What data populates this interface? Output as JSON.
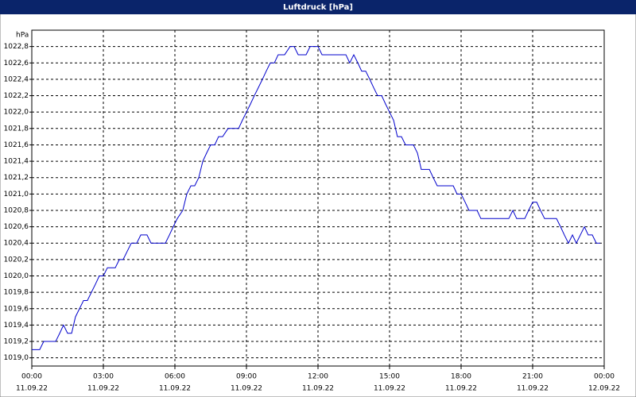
{
  "chart_data": {
    "type": "line",
    "title": "Luftdruck [hPa]",
    "y_label": "hPa",
    "color": "#0000cc",
    "grid": true,
    "xlim": [
      0,
      24
    ],
    "ylim": [
      1018.9,
      1023.0
    ],
    "xticks": [
      {
        "value": 0,
        "label": "00:00"
      },
      {
        "value": 3,
        "label": "03:00"
      },
      {
        "value": 6,
        "label": "06:00"
      },
      {
        "value": 9,
        "label": "09:00"
      },
      {
        "value": 12,
        "label": "12:00"
      },
      {
        "value": 15,
        "label": "15:00"
      },
      {
        "value": 18,
        "label": "18:00"
      },
      {
        "value": 21,
        "label": "21:00"
      },
      {
        "value": 24,
        "label": "00:00"
      }
    ],
    "xtick_dates": [
      "11.09.22",
      "11.09.22",
      "11.09.22",
      "11.09.22",
      "11.09.22",
      "11.09.22",
      "11.09.22",
      "11.09.22",
      "12.09.22"
    ],
    "yticks": [
      {
        "value": 1019.0,
        "label": "1019,0"
      },
      {
        "value": 1019.2,
        "label": "1019,2"
      },
      {
        "value": 1019.4,
        "label": "1019,4"
      },
      {
        "value": 1019.6,
        "label": "1019,6"
      },
      {
        "value": 1019.8,
        "label": "1019,8"
      },
      {
        "value": 1020.0,
        "label": "1020,0"
      },
      {
        "value": 1020.2,
        "label": "1020,2"
      },
      {
        "value": 1020.4,
        "label": "1020,4"
      },
      {
        "value": 1020.6,
        "label": "1020,6"
      },
      {
        "value": 1020.8,
        "label": "1020,8"
      },
      {
        "value": 1021.0,
        "label": "1021,0"
      },
      {
        "value": 1021.2,
        "label": "1021,2"
      },
      {
        "value": 1021.4,
        "label": "1021,4"
      },
      {
        "value": 1021.6,
        "label": "1021,6"
      },
      {
        "value": 1021.8,
        "label": "1021,8"
      },
      {
        "value": 1022.0,
        "label": "1022,0"
      },
      {
        "value": 1022.2,
        "label": "1022,2"
      },
      {
        "value": 1022.4,
        "label": "1022,4"
      },
      {
        "value": 1022.6,
        "label": "1022,6"
      },
      {
        "value": 1022.8,
        "label": "1022,8"
      }
    ],
    "x": [
      0,
      0.33,
      0.5,
      1,
      1.17,
      1.33,
      1.5,
      1.67,
      1.83,
      2,
      2.17,
      2.33,
      2.5,
      2.67,
      2.83,
      3,
      3.17,
      3.5,
      3.67,
      3.83,
      4,
      4.17,
      4.4,
      4.57,
      4.83,
      5,
      5.6,
      5.77,
      5.93,
      6.1,
      6.33,
      6.5,
      6.67,
      6.83,
      7,
      7.17,
      7.33,
      7.5,
      7.67,
      7.83,
      8,
      8.23,
      8.67,
      8.83,
      9,
      9.17,
      9.33,
      9.5,
      9.67,
      9.83,
      10,
      10.17,
      10.33,
      10.6,
      10.83,
      11,
      11.17,
      11.5,
      11.67,
      12,
      12.17,
      13.17,
      13.33,
      13.5,
      13.67,
      13.83,
      14,
      14.17,
      14.33,
      14.5,
      14.67,
      14.83,
      15,
      15.17,
      15.33,
      15.5,
      15.67,
      16,
      16.17,
      16.33,
      16.67,
      16.83,
      17,
      17.67,
      17.83,
      18,
      18.17,
      18.33,
      18.67,
      18.83,
      20,
      20.17,
      20.33,
      20.67,
      20.83,
      21,
      21.17,
      21.33,
      21.5,
      22,
      22.17,
      22.33,
      22.5,
      22.67,
      22.83,
      23,
      23.17,
      23.33,
      23.5,
      23.67,
      23.83
    ],
    "values": [
      1019.1,
      1019.1,
      1019.2,
      1019.2,
      1019.3,
      1019.4,
      1019.3,
      1019.3,
      1019.5,
      1019.6,
      1019.7,
      1019.7,
      1019.8,
      1019.9,
      1020.0,
      1020.0,
      1020.1,
      1020.1,
      1020.2,
      1020.2,
      1020.3,
      1020.4,
      1020.4,
      1020.5,
      1020.5,
      1020.4,
      1020.4,
      1020.5,
      1020.6,
      1020.7,
      1020.8,
      1021.0,
      1021.1,
      1021.1,
      1021.2,
      1021.4,
      1021.5,
      1021.6,
      1021.6,
      1021.7,
      1021.7,
      1021.8,
      1021.8,
      1021.9,
      1022.0,
      1022.1,
      1022.2,
      1022.3,
      1022.4,
      1022.5,
      1022.6,
      1022.6,
      1022.7,
      1022.7,
      1022.8,
      1022.8,
      1022.7,
      1022.7,
      1022.8,
      1022.8,
      1022.7,
      1022.7,
      1022.6,
      1022.7,
      1022.6,
      1022.5,
      1022.5,
      1022.4,
      1022.3,
      1022.2,
      1022.2,
      1022.1,
      1022.0,
      1021.9,
      1021.7,
      1021.7,
      1021.6,
      1021.6,
      1021.5,
      1021.3,
      1021.3,
      1021.2,
      1021.1,
      1021.1,
      1021.0,
      1021.0,
      1020.9,
      1020.8,
      1020.8,
      1020.7,
      1020.7,
      1020.8,
      1020.7,
      1020.7,
      1020.8,
      1020.9,
      1020.9,
      1020.8,
      1020.7,
      1020.7,
      1020.6,
      1020.5,
      1020.4,
      1020.5,
      1020.4,
      1020.5,
      1020.6,
      1020.5,
      1020.5,
      1020.4,
      1020.4
    ]
  }
}
